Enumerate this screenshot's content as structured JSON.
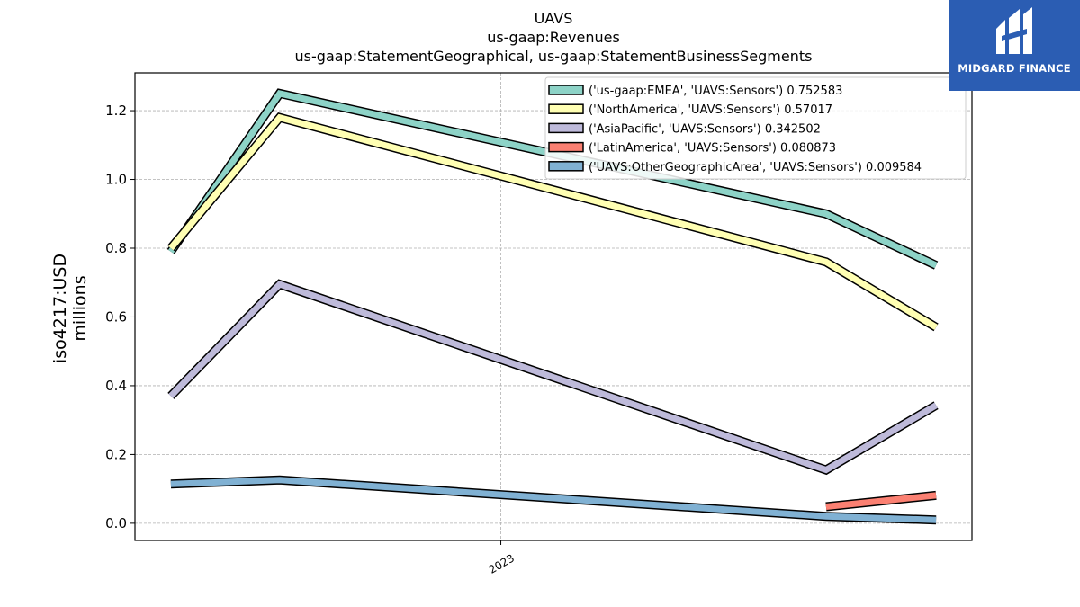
{
  "chart_data": {
    "type": "line",
    "title": [
      "UAVS",
      "us-gaap:Revenues",
      "us-gaap:StatementGeographical, us-gaap:StatementBusinessSegments"
    ],
    "ylabel": [
      "iso4217:USD",
      "millions"
    ],
    "xlabel": "",
    "xticks": [
      "2023"
    ],
    "yticks": [
      "0.0",
      "0.2",
      "0.4",
      "0.6",
      "0.8",
      "1.0",
      "1.2"
    ],
    "ylim": [
      -0.05,
      1.31
    ],
    "grid": true,
    "legend_position": "top-right",
    "x": [
      "2022-03-31",
      "2022-06-30",
      "2022-09-30",
      "2022-12-31",
      "2023-03-31",
      "2023-06-30",
      "2023-09-30",
      "2023-12-31"
    ],
    "series": [
      {
        "name": "('us-gaap:EMEA', 'UAVS:Sensors') 0.752583",
        "color": "#8dd3c7",
        "points": [
          [
            "2022-03-31",
            0.79
          ],
          [
            "2022-06-30",
            1.25
          ],
          [
            "2023-09-30",
            0.9
          ],
          [
            "2023-12-31",
            0.75
          ]
        ]
      },
      {
        "name": "('NorthAmerica', 'UAVS:Sensors') 0.57017",
        "color": "#ffffb3",
        "points": [
          [
            "2022-03-31",
            0.8
          ],
          [
            "2022-06-30",
            1.18
          ],
          [
            "2023-09-30",
            0.76
          ],
          [
            "2023-12-31",
            0.57
          ]
        ]
      },
      {
        "name": "('AsiaPacific', 'UAVS:Sensors') 0.342502",
        "color": "#bebada",
        "points": [
          [
            "2022-03-31",
            0.37
          ],
          [
            "2022-06-30",
            0.695
          ],
          [
            "2023-09-30",
            0.155
          ],
          [
            "2023-12-31",
            0.343
          ]
        ]
      },
      {
        "name": "('LatinAmerica', 'UAVS:Sensors') 0.080873",
        "color": "#fb8072",
        "points": [
          [
            "2023-09-30",
            0.048
          ],
          [
            "2023-12-31",
            0.081
          ]
        ]
      },
      {
        "name": "('UAVS:OtherGeographicArea', 'UAVS:Sensors') 0.009584",
        "color": "#80b1d3",
        "points": [
          [
            "2022-03-31",
            0.114
          ],
          [
            "2022-06-30",
            0.126
          ],
          [
            "2023-09-30",
            0.02
          ],
          [
            "2023-12-31",
            0.0096
          ]
        ]
      }
    ]
  },
  "logo": {
    "text": "MIDGARD FINANCE",
    "color": "#2b5db3"
  }
}
